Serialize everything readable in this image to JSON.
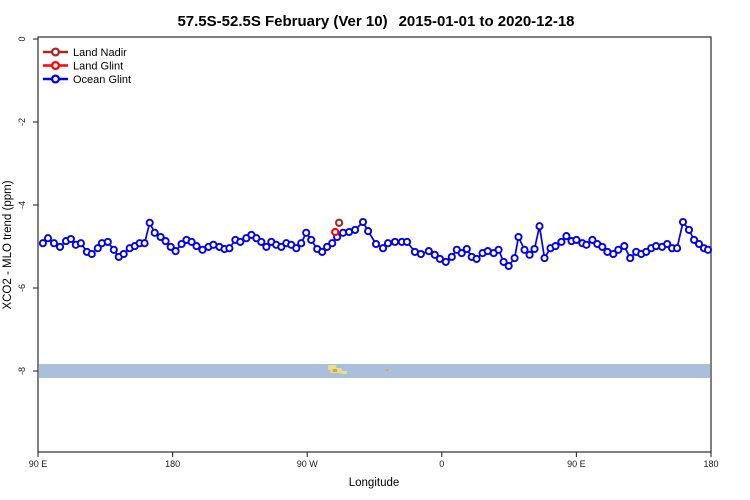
{
  "header": {
    "title_region": "57.5S-52.5S February (Ver 10)",
    "title_dates": "2015-01-01 to 2020-12-18",
    "title_full": "57.5S-52.5S February (Ver 10)  2015-01-01 to 2020-12-18"
  },
  "legend": {
    "position": "top-left",
    "items": [
      {
        "label": "Land Nadir",
        "color": "#A52A2A"
      },
      {
        "label": "Land Glint",
        "color": "#FF0000"
      },
      {
        "label": "Ocean Glint",
        "color": "#0000EE"
      }
    ]
  },
  "chart_data": {
    "type": "line",
    "title": "57.5S-52.5S February (Ver 10)  2015-01-01 to 2020-12-18",
    "xlabel": "Longitude",
    "ylabel": "XCO2 - MLO trend (ppm)",
    "grid": false,
    "x_axis": {
      "range": [
        90,
        540
      ],
      "ticks": [
        {
          "v": 90,
          "label": "90 E"
        },
        {
          "v": 180,
          "label": "180"
        },
        {
          "v": 270,
          "label": "90 W"
        },
        {
          "v": 360,
          "label": "0"
        },
        {
          "v": 450,
          "label": "90 E"
        },
        {
          "v": 540,
          "label": "180"
        }
      ]
    },
    "y_axis": {
      "range": [
        -10,
        0.1
      ],
      "ticks": [
        {
          "v": 0,
          "label": "0"
        },
        {
          "v": -2,
          "label": "-2"
        },
        {
          "v": -4,
          "label": "-4"
        },
        {
          "v": -6,
          "label": "-6"
        },
        {
          "v": -8,
          "label": "-8"
        }
      ]
    },
    "series": [
      {
        "name": "Land Nadir",
        "color": "#A52A2A",
        "marker": "open-circle",
        "connected": false,
        "points": [
          [
            291.3,
            -4.43
          ]
        ]
      },
      {
        "name": "Land Glint",
        "color": "#FF0000",
        "marker": "open-circle",
        "connected": false,
        "points": [
          [
            288.7,
            -4.65
          ]
        ]
      },
      {
        "name": "Ocean Glint",
        "color": "#0000EE",
        "marker": "open-circle",
        "connected": true,
        "points": [
          [
            93.3,
            -4.92
          ],
          [
            96.7,
            -4.8
          ],
          [
            100.7,
            -4.92
          ],
          [
            104.7,
            -5.01
          ],
          [
            108.7,
            -4.87
          ],
          [
            112.0,
            -4.82
          ],
          [
            115.3,
            -4.96
          ],
          [
            118.7,
            -4.92
          ],
          [
            122.7,
            -5.13
          ],
          [
            126.0,
            -5.18
          ],
          [
            130.0,
            -5.04
          ],
          [
            132.7,
            -4.92
          ],
          [
            136.7,
            -4.89
          ],
          [
            140.7,
            -5.08
          ],
          [
            144.0,
            -5.25
          ],
          [
            147.3,
            -5.18
          ],
          [
            151.3,
            -5.04
          ],
          [
            154.7,
            -4.99
          ],
          [
            158.0,
            -4.92
          ],
          [
            161.3,
            -4.92
          ],
          [
            164.7,
            -4.43
          ],
          [
            168.0,
            -4.67
          ],
          [
            172.0,
            -4.77
          ],
          [
            175.3,
            -4.87
          ],
          [
            178.7,
            -5.01
          ],
          [
            182.0,
            -5.11
          ],
          [
            186.0,
            -4.94
          ],
          [
            189.3,
            -4.84
          ],
          [
            192.7,
            -4.89
          ],
          [
            196.0,
            -4.99
          ],
          [
            200.0,
            -5.08
          ],
          [
            204.0,
            -5.01
          ],
          [
            207.3,
            -4.96
          ],
          [
            211.3,
            -5.01
          ],
          [
            214.7,
            -5.06
          ],
          [
            218.0,
            -5.04
          ],
          [
            222.0,
            -4.84
          ],
          [
            225.3,
            -4.89
          ],
          [
            229.3,
            -4.8
          ],
          [
            232.7,
            -4.72
          ],
          [
            236.0,
            -4.8
          ],
          [
            239.3,
            -4.89
          ],
          [
            242.7,
            -5.01
          ],
          [
            246.0,
            -4.89
          ],
          [
            249.3,
            -4.96
          ],
          [
            252.7,
            -5.01
          ],
          [
            256.0,
            -4.92
          ],
          [
            259.3,
            -4.96
          ],
          [
            262.7,
            -5.04
          ],
          [
            266.0,
            -4.92
          ],
          [
            269.3,
            -4.67
          ],
          [
            272.7,
            -4.84
          ],
          [
            276.7,
            -5.06
          ],
          [
            280.0,
            -5.13
          ],
          [
            283.3,
            -5.01
          ],
          [
            286.7,
            -4.92
          ],
          [
            290.0,
            -4.77
          ],
          [
            294.0,
            -4.67
          ],
          [
            298.0,
            -4.65
          ],
          [
            302.0,
            -4.6
          ],
          [
            307.3,
            -4.41
          ],
          [
            310.7,
            -4.63
          ],
          [
            316.0,
            -4.94
          ],
          [
            320.7,
            -5.04
          ],
          [
            324.0,
            -4.92
          ],
          [
            328.7,
            -4.89
          ],
          [
            333.3,
            -4.89
          ],
          [
            336.7,
            -4.89
          ],
          [
            342.0,
            -5.13
          ],
          [
            346.0,
            -5.18
          ],
          [
            351.3,
            -5.11
          ],
          [
            355.3,
            -5.2
          ],
          [
            358.7,
            -5.3
          ],
          [
            362.7,
            -5.37
          ],
          [
            366.7,
            -5.25
          ],
          [
            370.0,
            -5.08
          ],
          [
            373.3,
            -5.16
          ],
          [
            376.7,
            -5.06
          ],
          [
            380.0,
            -5.25
          ],
          [
            383.3,
            -5.3
          ],
          [
            387.3,
            -5.16
          ],
          [
            390.7,
            -5.11
          ],
          [
            394.7,
            -5.16
          ],
          [
            398.0,
            -5.08
          ],
          [
            401.3,
            -5.37
          ],
          [
            404.7,
            -5.47
          ],
          [
            408.7,
            -5.28
          ],
          [
            411.3,
            -4.77
          ],
          [
            415.3,
            -5.08
          ],
          [
            418.7,
            -5.2
          ],
          [
            422.0,
            -5.06
          ],
          [
            425.3,
            -4.51
          ],
          [
            428.7,
            -5.28
          ],
          [
            432.7,
            -5.04
          ],
          [
            436.0,
            -4.99
          ],
          [
            440.0,
            -4.89
          ],
          [
            443.3,
            -4.75
          ],
          [
            446.7,
            -4.87
          ],
          [
            450.0,
            -4.84
          ],
          [
            454.0,
            -4.92
          ],
          [
            456.7,
            -4.96
          ],
          [
            460.7,
            -4.84
          ],
          [
            464.0,
            -4.94
          ],
          [
            467.3,
            -5.01
          ],
          [
            470.7,
            -5.13
          ],
          [
            474.7,
            -5.18
          ],
          [
            478.0,
            -5.08
          ],
          [
            482.0,
            -4.99
          ],
          [
            486.0,
            -5.28
          ],
          [
            490.0,
            -5.13
          ],
          [
            493.3,
            -5.18
          ],
          [
            496.7,
            -5.13
          ],
          [
            500.0,
            -5.04
          ],
          [
            503.3,
            -4.99
          ],
          [
            507.3,
            -5.01
          ],
          [
            510.7,
            -4.94
          ],
          [
            514.0,
            -5.04
          ],
          [
            517.3,
            -5.04
          ],
          [
            521.3,
            -4.41
          ],
          [
            525.3,
            -4.6
          ],
          [
            528.7,
            -4.84
          ],
          [
            532.0,
            -4.94
          ],
          [
            535.3,
            -5.04
          ],
          [
            538.0,
            -5.08
          ]
        ]
      }
    ],
    "map_strip": {
      "y_center": -8,
      "ocean_color": "#A9BFDB",
      "land_patches": [
        {
          "x0": 284.0,
          "x1": 289.5,
          "dy": 1,
          "h": 5,
          "color": "#EFDC8C"
        },
        {
          "x0": 285.5,
          "x1": 293.0,
          "dy": 4,
          "h": 5,
          "color": "#EFDC8C"
        },
        {
          "x0": 287.0,
          "x1": 290.0,
          "dy": 5,
          "h": 3,
          "color": "#E2A13F"
        },
        {
          "x0": 293.0,
          "x1": 296.5,
          "dy": 7,
          "h": 3,
          "color": "#EFDC8C"
        },
        {
          "x0": 322.8,
          "x1": 324.5,
          "dy": 5,
          "h": 2,
          "color": "#E2A13F"
        }
      ]
    }
  }
}
